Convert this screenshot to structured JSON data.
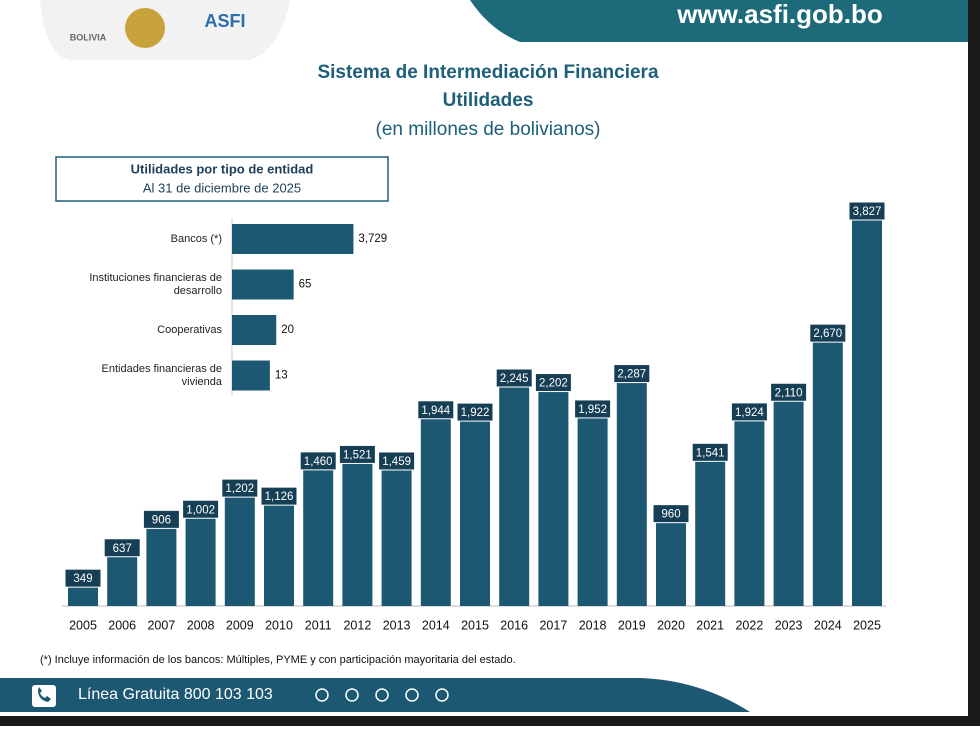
{
  "header": {
    "country": "BOLIVIA",
    "agency": "ASFI",
    "website": "www.asfi.gob.bo"
  },
  "chart_data": [
    {
      "type": "bar",
      "title": "Sistema de Intermediación Financiera",
      "subtitle": "Utilidades",
      "unit_note": "(en millones de bolivianos)",
      "categories": [
        "2005",
        "2006",
        "2007",
        "2008",
        "2009",
        "2010",
        "2011",
        "2012",
        "2013",
        "2014",
        "2015",
        "2016",
        "2017",
        "2018",
        "2019",
        "2020",
        "2021",
        "2022",
        "2023",
        "2024",
        "2025"
      ],
      "values": [
        349,
        637,
        906,
        1002,
        1202,
        1126,
        1460,
        1521,
        1459,
        1944,
        1922,
        2245,
        2202,
        1952,
        2287,
        960,
        1541,
        1924,
        2110,
        2670,
        3827
      ],
      "value_labels": [
        "349",
        "637",
        "906",
        "1,002",
        "1,202",
        "1,126",
        "1,460",
        "1,521",
        "1,459",
        "1,944",
        "1,922",
        "2,245",
        "2,202",
        "1,952",
        "2,287",
        "960",
        "1,541",
        "1,924",
        "2,110",
        "2,670",
        "3,827"
      ],
      "color": "#1d5873"
    },
    {
      "type": "barh",
      "title": "Utilidades por tipo de entidad",
      "subtitle": "Al 31 de diciembre de 2025",
      "categories": [
        "Bancos (*)",
        "Instituciones financieras de desarrollo",
        "Cooperativas",
        "Entidades financieras de vivienda"
      ],
      "values": [
        3729,
        65,
        20,
        13
      ],
      "value_labels": [
        "3,729",
        "65",
        "20",
        "13"
      ],
      "color": "#1d5873",
      "log_scale": true
    }
  ],
  "footnote": "(*) Incluye información de los bancos: Múltiples, PYME y con participación mayoritaria del estado.",
  "footer": {
    "hotline": "Línea Gratuita 800 103 103"
  }
}
